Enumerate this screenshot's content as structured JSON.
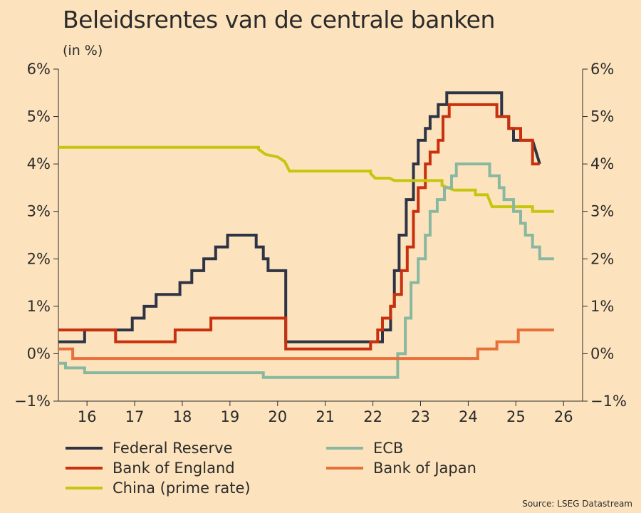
{
  "chart_data": {
    "type": "line",
    "title": "Beleidsrentes van de centrale banken",
    "subtitle": "(in %)",
    "source": "Source: LSEG Datastream",
    "xlabel": "",
    "ylabel": "",
    "xlim": [
      2015.4,
      2026.4
    ],
    "ylim": [
      -1,
      6
    ],
    "x_ticks": [
      2016,
      2017,
      2018,
      2019,
      2020,
      2021,
      2022,
      2023,
      2024,
      2025,
      2026
    ],
    "x_tick_labels": [
      "16",
      "17",
      "18",
      "19",
      "20",
      "21",
      "22",
      "23",
      "24",
      "25",
      "26"
    ],
    "y_ticks": [
      -1,
      0,
      1,
      2,
      3,
      4,
      5,
      6
    ],
    "y_tick_labels": [
      "−1%",
      "0%",
      "1%",
      "2%",
      "3%",
      "4%",
      "5%",
      "6%"
    ],
    "grid": false,
    "legend_placement": "bottom",
    "series": [
      {
        "name": "Federal Reserve",
        "color": "#2e3446",
        "points": [
          [
            2015.4,
            0.25
          ],
          [
            2015.95,
            0.25
          ],
          [
            2015.95,
            0.5
          ],
          [
            2016.95,
            0.5
          ],
          [
            2016.95,
            0.75
          ],
          [
            2017.2,
            0.75
          ],
          [
            2017.2,
            1.0
          ],
          [
            2017.45,
            1.0
          ],
          [
            2017.45,
            1.25
          ],
          [
            2017.95,
            1.25
          ],
          [
            2017.95,
            1.5
          ],
          [
            2018.2,
            1.5
          ],
          [
            2018.2,
            1.75
          ],
          [
            2018.45,
            1.75
          ],
          [
            2018.45,
            2.0
          ],
          [
            2018.7,
            2.0
          ],
          [
            2018.7,
            2.25
          ],
          [
            2018.95,
            2.25
          ],
          [
            2018.95,
            2.5
          ],
          [
            2019.55,
            2.5
          ],
          [
            2019.55,
            2.25
          ],
          [
            2019.7,
            2.25
          ],
          [
            2019.7,
            2.0
          ],
          [
            2019.8,
            2.0
          ],
          [
            2019.8,
            1.75
          ],
          [
            2020.17,
            1.75
          ],
          [
            2020.17,
            0.25
          ],
          [
            2022.2,
            0.25
          ],
          [
            2022.2,
            0.5
          ],
          [
            2022.37,
            0.5
          ],
          [
            2022.37,
            1.0
          ],
          [
            2022.45,
            1.0
          ],
          [
            2022.45,
            1.75
          ],
          [
            2022.55,
            1.75
          ],
          [
            2022.55,
            2.5
          ],
          [
            2022.7,
            2.5
          ],
          [
            2022.7,
            3.25
          ],
          [
            2022.85,
            3.25
          ],
          [
            2022.85,
            4.0
          ],
          [
            2022.95,
            4.0
          ],
          [
            2022.95,
            4.5
          ],
          [
            2023.1,
            4.5
          ],
          [
            2023.1,
            4.75
          ],
          [
            2023.2,
            4.75
          ],
          [
            2023.2,
            5.0
          ],
          [
            2023.37,
            5.0
          ],
          [
            2023.37,
            5.25
          ],
          [
            2023.55,
            5.25
          ],
          [
            2023.55,
            5.5
          ],
          [
            2024.7,
            5.5
          ],
          [
            2024.7,
            5.0
          ],
          [
            2024.85,
            5.0
          ],
          [
            2024.85,
            4.75
          ],
          [
            2024.95,
            4.75
          ],
          [
            2024.95,
            4.5
          ],
          [
            2025.35,
            4.5
          ],
          [
            2025.5,
            4.0
          ]
        ]
      },
      {
        "name": "Bank of England",
        "color": "#c9300d",
        "points": [
          [
            2015.4,
            0.5
          ],
          [
            2016.6,
            0.5
          ],
          [
            2016.6,
            0.25
          ],
          [
            2017.85,
            0.25
          ],
          [
            2017.85,
            0.5
          ],
          [
            2018.6,
            0.5
          ],
          [
            2018.6,
            0.75
          ],
          [
            2020.17,
            0.75
          ],
          [
            2020.17,
            0.1
          ],
          [
            2021.95,
            0.1
          ],
          [
            2021.95,
            0.25
          ],
          [
            2022.1,
            0.25
          ],
          [
            2022.1,
            0.5
          ],
          [
            2022.2,
            0.5
          ],
          [
            2022.2,
            0.75
          ],
          [
            2022.37,
            0.75
          ],
          [
            2022.37,
            1.0
          ],
          [
            2022.45,
            1.0
          ],
          [
            2022.45,
            1.25
          ],
          [
            2022.6,
            1.25
          ],
          [
            2022.6,
            1.75
          ],
          [
            2022.72,
            1.75
          ],
          [
            2022.72,
            2.25
          ],
          [
            2022.85,
            2.25
          ],
          [
            2022.85,
            3.0
          ],
          [
            2022.95,
            3.0
          ],
          [
            2022.95,
            3.5
          ],
          [
            2023.1,
            3.5
          ],
          [
            2023.1,
            4.0
          ],
          [
            2023.2,
            4.0
          ],
          [
            2023.2,
            4.25
          ],
          [
            2023.37,
            4.25
          ],
          [
            2023.37,
            4.5
          ],
          [
            2023.47,
            4.5
          ],
          [
            2023.47,
            5.0
          ],
          [
            2023.6,
            5.0
          ],
          [
            2023.6,
            5.25
          ],
          [
            2024.6,
            5.25
          ],
          [
            2024.6,
            5.0
          ],
          [
            2024.85,
            5.0
          ],
          [
            2024.85,
            4.75
          ],
          [
            2025.1,
            4.75
          ],
          [
            2025.1,
            4.5
          ],
          [
            2025.35,
            4.5
          ],
          [
            2025.35,
            4.25
          ],
          [
            2025.35,
            4.0
          ],
          [
            2025.5,
            4.0
          ]
        ]
      },
      {
        "name": "China (prime rate)",
        "color": "#c6c610",
        "points": [
          [
            2015.4,
            4.35
          ],
          [
            2019.6,
            4.35
          ],
          [
            2019.6,
            4.31
          ],
          [
            2019.75,
            4.2
          ],
          [
            2020.0,
            4.15
          ],
          [
            2020.15,
            4.05
          ],
          [
            2020.25,
            3.85
          ],
          [
            2021.95,
            3.85
          ],
          [
            2021.95,
            3.8
          ],
          [
            2022.05,
            3.7
          ],
          [
            2022.35,
            3.7
          ],
          [
            2022.45,
            3.65
          ],
          [
            2023.45,
            3.65
          ],
          [
            2023.45,
            3.55
          ],
          [
            2023.7,
            3.45
          ],
          [
            2024.15,
            3.45
          ],
          [
            2024.15,
            3.35
          ],
          [
            2024.4,
            3.35
          ],
          [
            2024.5,
            3.1
          ],
          [
            2025.35,
            3.1
          ],
          [
            2025.35,
            3.0
          ],
          [
            2025.8,
            3.0
          ]
        ]
      },
      {
        "name": "ECB",
        "color": "#88b8a0",
        "points": [
          [
            2015.4,
            -0.2
          ],
          [
            2015.55,
            -0.2
          ],
          [
            2015.55,
            -0.3
          ],
          [
            2015.95,
            -0.3
          ],
          [
            2015.95,
            -0.4
          ],
          [
            2019.7,
            -0.4
          ],
          [
            2019.7,
            -0.5
          ],
          [
            2022.52,
            -0.5
          ],
          [
            2022.52,
            0.0
          ],
          [
            2022.68,
            0.0
          ],
          [
            2022.68,
            0.75
          ],
          [
            2022.8,
            0.75
          ],
          [
            2022.8,
            1.5
          ],
          [
            2022.95,
            1.5
          ],
          [
            2022.95,
            2.0
          ],
          [
            2023.1,
            2.0
          ],
          [
            2023.1,
            2.5
          ],
          [
            2023.2,
            2.5
          ],
          [
            2023.2,
            3.0
          ],
          [
            2023.35,
            3.0
          ],
          [
            2023.35,
            3.25
          ],
          [
            2023.5,
            3.25
          ],
          [
            2023.5,
            3.5
          ],
          [
            2023.65,
            3.5
          ],
          [
            2023.65,
            3.75
          ],
          [
            2023.75,
            3.75
          ],
          [
            2023.75,
            4.0
          ],
          [
            2024.45,
            4.0
          ],
          [
            2024.45,
            3.75
          ],
          [
            2024.65,
            3.75
          ],
          [
            2024.65,
            3.5
          ],
          [
            2024.75,
            3.5
          ],
          [
            2024.75,
            3.25
          ],
          [
            2024.95,
            3.25
          ],
          [
            2024.95,
            3.0
          ],
          [
            2025.1,
            3.0
          ],
          [
            2025.1,
            2.75
          ],
          [
            2025.2,
            2.75
          ],
          [
            2025.2,
            2.5
          ],
          [
            2025.35,
            2.5
          ],
          [
            2025.35,
            2.25
          ],
          [
            2025.5,
            2.25
          ],
          [
            2025.5,
            2.0
          ],
          [
            2025.8,
            2.0
          ]
        ]
      },
      {
        "name": "Bank of Japan",
        "color": "#e86f3a",
        "points": [
          [
            2015.4,
            0.1
          ],
          [
            2015.7,
            0.1
          ],
          [
            2015.7,
            -0.1
          ],
          [
            2024.2,
            -0.1
          ],
          [
            2024.2,
            0.1
          ],
          [
            2024.6,
            0.1
          ],
          [
            2024.6,
            0.25
          ],
          [
            2025.05,
            0.25
          ],
          [
            2025.05,
            0.5
          ],
          [
            2025.8,
            0.5
          ]
        ]
      }
    ]
  },
  "legend": [
    {
      "label": "Federal Reserve",
      "color": "#2e3446"
    },
    {
      "label": "ECB",
      "color": "#88b8a0"
    },
    {
      "label": "Bank of England",
      "color": "#c9300d"
    },
    {
      "label": "Bank of Japan",
      "color": "#e86f3a"
    },
    {
      "label": "China (prime rate)",
      "color": "#c6c610"
    }
  ]
}
